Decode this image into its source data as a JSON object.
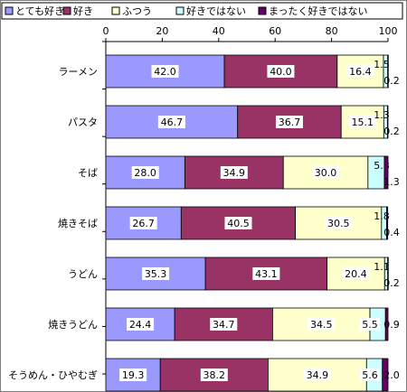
{
  "chart_data": {
    "type": "bar",
    "orientation": "horizontal",
    "stacked": true,
    "percent": true,
    "xlim": [
      0,
      100
    ],
    "x_ticks": [
      "0",
      "20",
      "40",
      "60",
      "80",
      "100"
    ],
    "grid": false,
    "legend_position": "top",
    "categories": [
      "ラーメン",
      "パスタ",
      "そば",
      "焼きそば",
      "うどん",
      "焼きうどん",
      "そうめん・ひやむぎ"
    ],
    "series": [
      {
        "name": "とても好き",
        "color": "#9999ff",
        "values": [
          42.0,
          46.7,
          28.0,
          26.7,
          35.3,
          24.4,
          19.3
        ],
        "labels": [
          "42.0",
          "46.7",
          "28.0",
          "26.7",
          "35.3",
          "24.4",
          "19.3"
        ]
      },
      {
        "name": "好き",
        "color": "#993366",
        "values": [
          40.0,
          36.7,
          34.9,
          40.5,
          43.1,
          34.7,
          38.2
        ],
        "labels": [
          "40.0",
          "36.7",
          "34.9",
          "40.5",
          "43.1",
          "34.7",
          "38.2"
        ]
      },
      {
        "name": "ふつう",
        "color": "#ffffcc",
        "values": [
          16.4,
          15.1,
          30.0,
          30.5,
          20.4,
          34.5,
          34.9
        ],
        "labels": [
          "16.4",
          "15.1",
          "30.0",
          "30.5",
          "20.4",
          "34.5",
          "34.9"
        ]
      },
      {
        "name": "好きではない",
        "color": "#ccffff",
        "values": [
          1.5,
          1.3,
          5.8,
          1.8,
          1.1,
          5.5,
          5.6
        ],
        "labels": [
          "1.5",
          "1.3",
          "5.8",
          "1.8",
          "1.1",
          "5.5",
          "5.6"
        ]
      },
      {
        "name": "まったく好きではない",
        "color": "#660066",
        "values": [
          0.2,
          0.2,
          1.3,
          0.4,
          0.2,
          0.9,
          2.0
        ],
        "labels": [
          "0.2",
          "0.2",
          "1.3",
          "0.4",
          "0.2",
          "0.9",
          "2.0"
        ]
      }
    ]
  }
}
